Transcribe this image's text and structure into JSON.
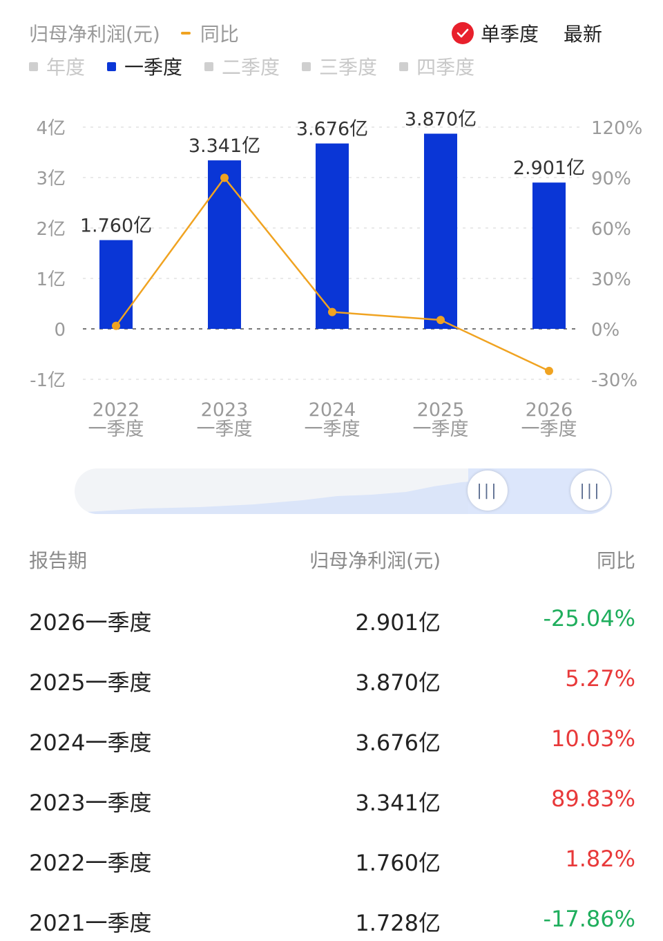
{
  "legend": {
    "title": "归母净利润(元)",
    "yoy_label": "同比",
    "single_quarter": "单季度",
    "latest": "最新",
    "period_tabs": [
      "年度",
      "一季度",
      "二季度",
      "三季度",
      "四季度"
    ],
    "active_tab": "一季度"
  },
  "colors": {
    "bar": "#0a36d6",
    "line": "#f0a321",
    "up": "#e8393a",
    "down": "#1fae5d"
  },
  "chart_data": {
    "type": "bar",
    "categories": [
      [
        "2022",
        "一季度"
      ],
      [
        "2023",
        "一季度"
      ],
      [
        "2024",
        "一季度"
      ],
      [
        "2025",
        "一季度"
      ],
      [
        "2026",
        "一季度"
      ]
    ],
    "series": [
      {
        "type": "bar",
        "values": [
          1.76,
          3.341,
          3.676,
          3.87,
          2.901
        ],
        "labels": [
          "1.760亿",
          "3.341亿",
          "3.676亿",
          "3.870亿",
          "2.901亿"
        ]
      },
      {
        "type": "line",
        "axis": "right",
        "values": [
          1.82,
          89.83,
          10.03,
          5.27,
          -25.04
        ]
      }
    ],
    "y_left": {
      "ticks": [
        -1,
        0,
        1,
        2,
        3,
        4
      ],
      "labels": [
        "-1亿",
        "0",
        "1亿",
        "2亿",
        "3亿",
        "4亿"
      ]
    },
    "y_right": {
      "ticks": [
        -30,
        0,
        30,
        60,
        90,
        120
      ],
      "labels": [
        "-30%",
        "0%",
        "30%",
        "60%",
        "90%",
        "120%"
      ]
    },
    "grid": true
  },
  "table": {
    "headers": [
      "报告期",
      "归母净利润(元)",
      "同比"
    ],
    "rows": [
      {
        "period": "2026一季度",
        "profit": "2.901亿",
        "yoy": "-25.04%",
        "trend": "down"
      },
      {
        "period": "2025一季度",
        "profit": "3.870亿",
        "yoy": "5.27%",
        "trend": "up"
      },
      {
        "period": "2024一季度",
        "profit": "3.676亿",
        "yoy": "10.03%",
        "trend": "up"
      },
      {
        "period": "2023一季度",
        "profit": "3.341亿",
        "yoy": "89.83%",
        "trend": "up"
      },
      {
        "period": "2022一季度",
        "profit": "1.760亿",
        "yoy": "1.82%",
        "trend": "up"
      },
      {
        "period": "2021一季度",
        "profit": "1.728亿",
        "yoy": "-17.86%",
        "trend": "down"
      }
    ]
  }
}
